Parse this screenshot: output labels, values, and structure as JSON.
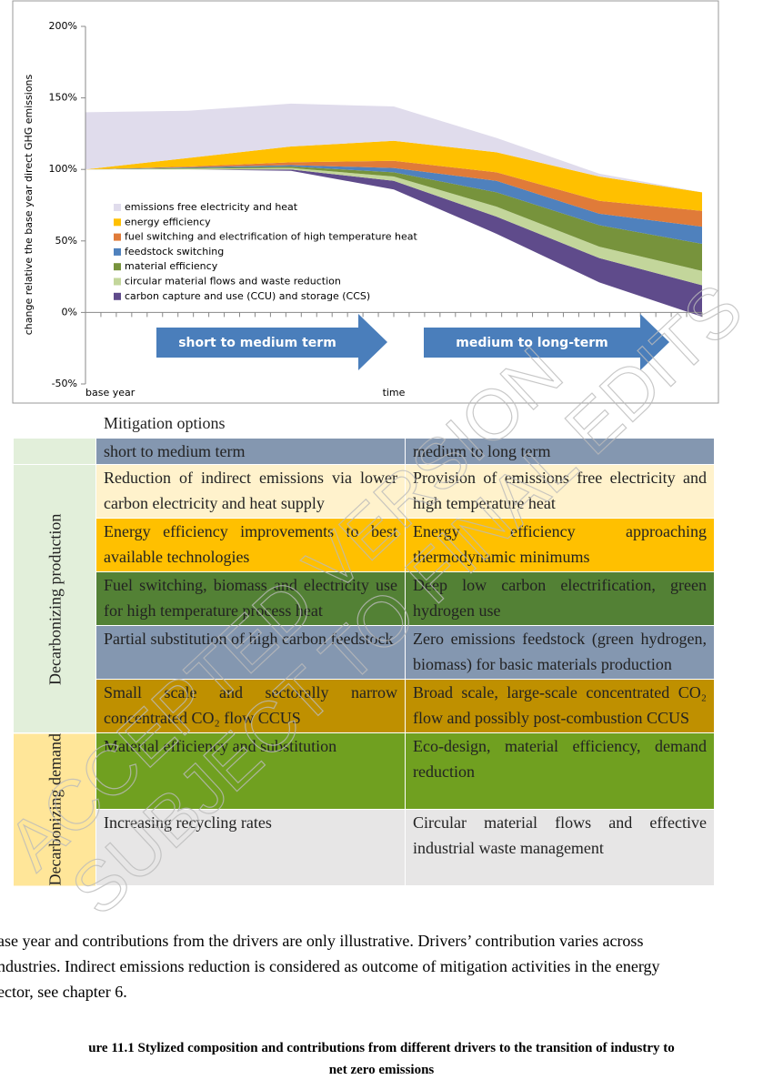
{
  "chart_data": {
    "type": "stacked-area",
    "ylabel": "change relative the base year direct GHG emissions",
    "xlabel": "time",
    "categories": [
      "base year",
      null,
      null,
      null,
      null,
      null,
      null
    ],
    "ylim": [
      -50,
      200
    ],
    "yticks": [
      {
        "value": -50,
        "label": "-50%"
      },
      {
        "value": 0,
        "label": "0%"
      },
      {
        "value": 50,
        "label": "50%"
      },
      {
        "value": 100,
        "label": "100%"
      },
      {
        "value": 150,
        "label": "150%"
      },
      {
        "value": 200,
        "label": "200%"
      }
    ],
    "series": [
      {
        "values": [
          100,
          100,
          99,
          86,
          55,
          21,
          -3
        ]
      },
      {
        "name": "carbon capture and use (CCU) and storage (CCS)",
        "color": "#5f4b8b",
        "values": [
          0,
          0,
          1,
          6,
          12,
          17,
          22
        ]
      },
      {
        "name": "circular material flows and waste reduction",
        "color": "#c3d69b",
        "values": [
          0,
          0.5,
          1,
          3,
          7,
          8,
          10
        ]
      },
      {
        "name": "material efficiency",
        "color": "#77933c",
        "values": [
          0,
          0.5,
          1,
          3,
          10,
          15,
          19
        ]
      },
      {
        "name": "feedstock switching",
        "color": "#4f81bd",
        "values": [
          0,
          0.5,
          1,
          3,
          8,
          8,
          12
        ]
      },
      {
        "name": "fuel switching and electrification of high temperature heat",
        "color": "#e07b39",
        "values": [
          0,
          0.5,
          2,
          5,
          6,
          9,
          11
        ]
      },
      {
        "name": "energy efficiency",
        "color": "#ffc000",
        "values": [
          0,
          6,
          11,
          14,
          14,
          17,
          13
        ]
      },
      {
        "name": "emissions free electricity and heat",
        "color": "#e0dcec",
        "values": [
          40,
          33,
          30,
          24,
          10,
          2,
          0
        ]
      }
    ],
    "annotations": [
      "short to medium term",
      "medium to long-term"
    ]
  },
  "table": {
    "title": "Mitigation options",
    "columns": [
      "short to medium term",
      "medium to long term"
    ],
    "groups": [
      {
        "label": "Decarbonizing production",
        "rows": 5
      },
      {
        "label": "Decarbonizing demand",
        "rows": 2
      }
    ],
    "rows": [
      {
        "color": "#fff2cc",
        "cells": [
          "Reduction of indirect emissions via lower carbon electricity and heat supply",
          "Provision of emissions free electricity and high temperature heat"
        ]
      },
      {
        "color": "#ffc000",
        "cells": [
          "Energy efficiency improvements to best available technologies",
          "Energy efficiency approaching thermodynamic minimums"
        ]
      },
      {
        "color": "#538135",
        "cells": [
          "Fuel switching, biomass and electricity use for high temperature process heat",
          "Deep low carbon electrification, green hydrogen use"
        ]
      },
      {
        "color": "#8497b0",
        "cells": [
          "Partial substitution of high carbon feedstock",
          "Zero emissions feedstock (green hydrogen, biomass) for basic materials production"
        ]
      },
      {
        "color": "#bf9000",
        "cells": [
          "Small scale and sectorally narrow concentrated CO₂ flow CCUS",
          "Broad scale, large-scale concentrated CO₂ flow and possibly post-combustion CCUS"
        ]
      },
      {
        "color": "#70a020",
        "cells": [
          "Material efficiency and substitution",
          "Eco-design, material efficiency, demand reduction"
        ]
      },
      {
        "color": "#e7e6e6",
        "cells": [
          "Increasing recycling rates",
          "Circular material flows and effective industrial waste management"
        ]
      }
    ]
  },
  "note": [
    "ase year and contributions from the drivers are only illustrative. Drivers’ contribution varies across",
    "ndustries. Indirect emissions reduction is considered as outcome of mitigation activities in the energy",
    "ector, see chapter 6."
  ],
  "caption": [
    "ure 11.1 Stylized composition and contributions from different drivers to the transition of industry to",
    "net zero emissions"
  ],
  "watermark": [
    "ACCEPTED VERSION",
    "SUBJECT TO FINAL EDITS"
  ]
}
